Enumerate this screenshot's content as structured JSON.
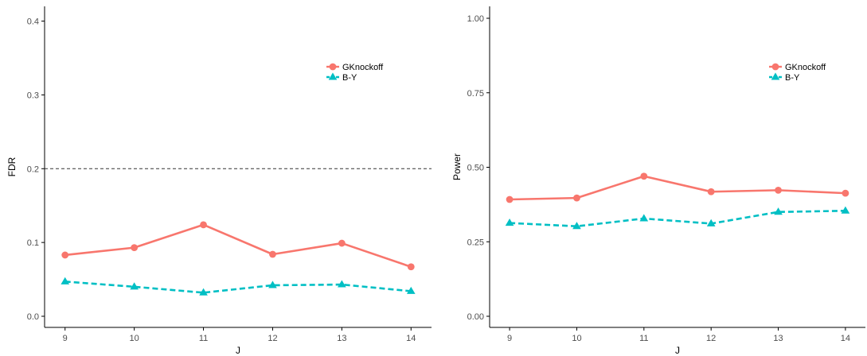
{
  "colors": {
    "gknockoff": "#F8766D",
    "by": "#00BFC4",
    "axis": "#000000",
    "tick_label": "#4D4D4D",
    "reference_line": "#333333"
  },
  "chart_data": [
    {
      "type": "line",
      "xlabel": "J",
      "ylabel": "FDR",
      "x": [
        9,
        10,
        11,
        12,
        13,
        14
      ],
      "xticks": [
        "9",
        "10",
        "11",
        "12",
        "13",
        "14"
      ],
      "ylim": [
        0,
        0.42
      ],
      "yticks": [
        "0.0",
        "0.1",
        "0.2",
        "0.3",
        "0.4"
      ],
      "ytick_values": [
        0,
        0.1,
        0.2,
        0.3,
        0.4
      ],
      "reference_line": 0.2,
      "grid": false,
      "legend_position": "top-right",
      "series": [
        {
          "name": "GKnockoff",
          "marker": "circle",
          "line_style": "solid",
          "values": [
            0.083,
            0.093,
            0.124,
            0.084,
            0.099,
            0.067
          ]
        },
        {
          "name": "B-Y",
          "marker": "triangle",
          "line_style": "dashed",
          "values": [
            0.047,
            0.04,
            0.032,
            0.042,
            0.043,
            0.034
          ]
        }
      ]
    },
    {
      "type": "line",
      "xlabel": "J",
      "ylabel": "Power",
      "x": [
        9,
        10,
        11,
        12,
        13,
        14
      ],
      "xticks": [
        "9",
        "10",
        "11",
        "12",
        "13",
        "14"
      ],
      "ylim": [
        0,
        1.04
      ],
      "yticks": [
        "0.00",
        "0.25",
        "0.50",
        "0.75",
        "1.00"
      ],
      "ytick_values": [
        0,
        0.25,
        0.5,
        0.75,
        1.0
      ],
      "grid": false,
      "legend_position": "top-right",
      "series": [
        {
          "name": "GKnockoff",
          "marker": "circle",
          "line_style": "solid",
          "values": [
            0.392,
            0.397,
            0.47,
            0.418,
            0.423,
            0.413
          ]
        },
        {
          "name": "B-Y",
          "marker": "triangle",
          "line_style": "dashed",
          "values": [
            0.313,
            0.302,
            0.328,
            0.311,
            0.35,
            0.354
          ]
        }
      ]
    }
  ]
}
